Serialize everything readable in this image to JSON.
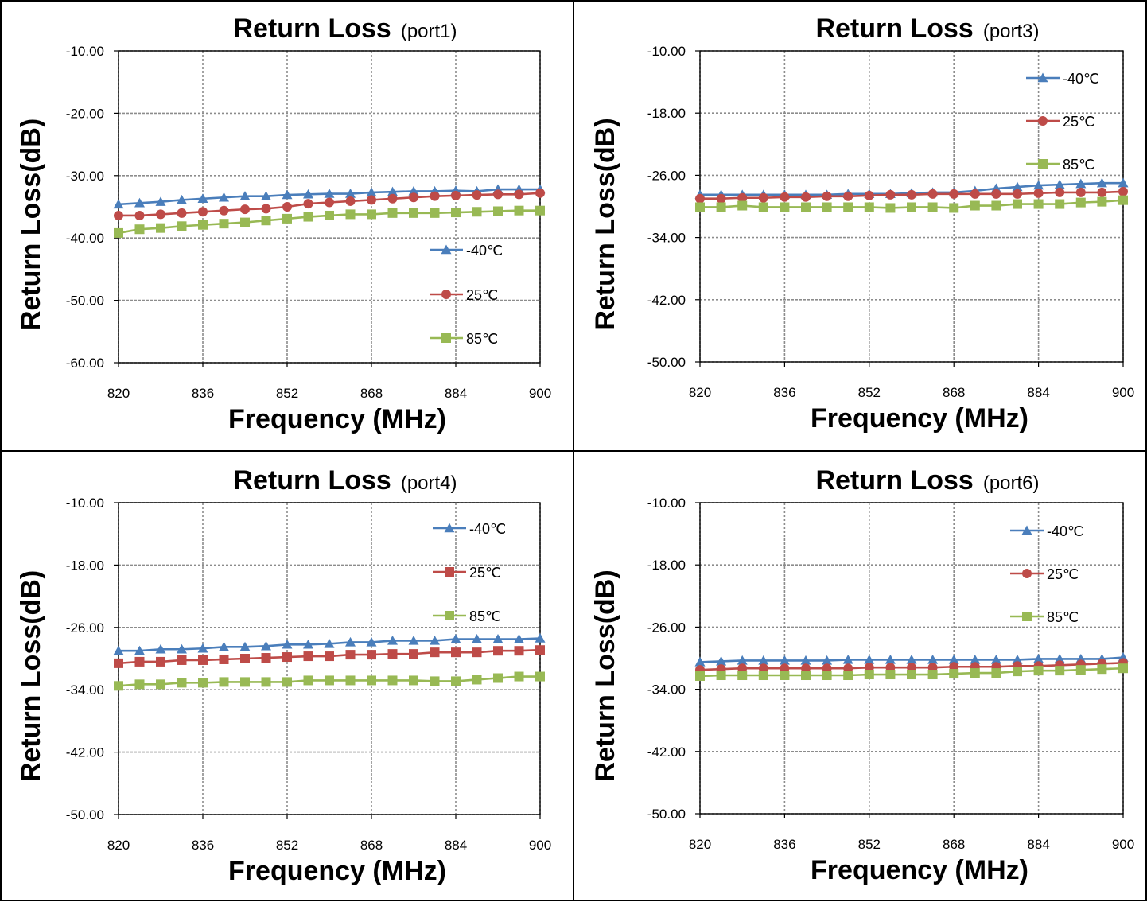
{
  "chart_data": [
    {
      "type": "line",
      "title": "Return Loss",
      "subtitle": "(port1)",
      "xlabel": "Frequency (MHz)",
      "ylabel": "Return Loss(dB)",
      "xlim": [
        820,
        900
      ],
      "ylim": [
        -60,
        -10
      ],
      "yticks": [
        -10,
        -20,
        -30,
        -40,
        -50,
        -60
      ],
      "ytick_labels": [
        "-10.00",
        "-20.00",
        "-30.00",
        "-40.00",
        "-50.00",
        "-60.00"
      ],
      "xticks": [
        820,
        836,
        852,
        868,
        884,
        900
      ],
      "xtick_labels": [
        "820",
        "836",
        "852",
        "868",
        "884",
        "900"
      ],
      "grid": true,
      "legend_position": "right-middle",
      "x": [
        820,
        824,
        828,
        832,
        836,
        840,
        844,
        848,
        852,
        856,
        860,
        864,
        868,
        872,
        876,
        880,
        884,
        888,
        892,
        896,
        900
      ],
      "series": [
        {
          "name": "-40℃",
          "color": "#4a7ebb",
          "marker": "triangle",
          "values": [
            -34.6,
            -34.4,
            -34.2,
            -33.9,
            -33.7,
            -33.5,
            -33.3,
            -33.3,
            -33.1,
            -33.0,
            -32.9,
            -32.9,
            -32.7,
            -32.6,
            -32.5,
            -32.5,
            -32.4,
            -32.5,
            -32.2,
            -32.2,
            -32.2
          ]
        },
        {
          "name": "25℃",
          "color": "#be4b48",
          "marker": "circle",
          "values": [
            -36.4,
            -36.4,
            -36.2,
            -36.0,
            -35.8,
            -35.6,
            -35.4,
            -35.3,
            -35.0,
            -34.5,
            -34.3,
            -34.1,
            -33.9,
            -33.7,
            -33.5,
            -33.3,
            -33.2,
            -33.1,
            -33.0,
            -33.0,
            -32.8
          ]
        },
        {
          "name": "85℃",
          "color": "#98b954",
          "marker": "square",
          "values": [
            -39.2,
            -38.6,
            -38.4,
            -38.1,
            -37.9,
            -37.7,
            -37.5,
            -37.2,
            -36.9,
            -36.6,
            -36.4,
            -36.2,
            -36.2,
            -36.0,
            -36.0,
            -36.0,
            -35.9,
            -35.8,
            -35.7,
            -35.6,
            -35.6
          ]
        }
      ]
    },
    {
      "type": "line",
      "title": "Return Loss",
      "subtitle": "(port3)",
      "xlabel": "Frequency (MHz)",
      "ylabel": "Return Loss(dB)",
      "xlim": [
        820,
        900
      ],
      "ylim": [
        -50,
        -10
      ],
      "yticks": [
        -10,
        -18,
        -26,
        -34,
        -42,
        -50
      ],
      "ytick_labels": [
        "-10.00",
        "-18.00",
        "-26.00",
        "-34.00",
        "-42.00",
        "-50.00"
      ],
      "xticks": [
        820,
        836,
        852,
        868,
        884,
        900
      ],
      "xtick_labels": [
        "820",
        "836",
        "852",
        "868",
        "884",
        "900"
      ],
      "grid": true,
      "legend_position": "top-right",
      "x": [
        820,
        824,
        828,
        832,
        836,
        840,
        844,
        848,
        852,
        856,
        860,
        864,
        868,
        872,
        876,
        880,
        884,
        888,
        892,
        896,
        900
      ],
      "series": [
        {
          "name": "-40℃",
          "color": "#4a7ebb",
          "marker": "triangle",
          "values": [
            -28.5,
            -28.5,
            -28.5,
            -28.5,
            -28.5,
            -28.5,
            -28.5,
            -28.4,
            -28.4,
            -28.4,
            -28.3,
            -28.2,
            -28.2,
            -28.0,
            -27.7,
            -27.5,
            -27.3,
            -27.2,
            -27.1,
            -27.0,
            -27.0
          ]
        },
        {
          "name": "25℃",
          "color": "#be4b48",
          "marker": "circle",
          "values": [
            -29.0,
            -29.0,
            -28.9,
            -28.9,
            -28.8,
            -28.8,
            -28.7,
            -28.7,
            -28.6,
            -28.5,
            -28.5,
            -28.4,
            -28.4,
            -28.4,
            -28.4,
            -28.4,
            -28.3,
            -28.2,
            -28.2,
            -28.2,
            -28.1
          ]
        },
        {
          "name": "85℃",
          "color": "#98b954",
          "marker": "square",
          "values": [
            -30.1,
            -30.1,
            -29.9,
            -30.1,
            -30.1,
            -30.1,
            -30.1,
            -30.1,
            -30.1,
            -30.2,
            -30.1,
            -30.1,
            -30.2,
            -29.9,
            -29.9,
            -29.7,
            -29.7,
            -29.7,
            -29.5,
            -29.4,
            -29.2
          ]
        }
      ]
    },
    {
      "type": "line",
      "title": "Return Loss",
      "subtitle": "(port4)",
      "xlabel": "Frequency (MHz)",
      "ylabel": "Return Loss(dB)",
      "xlim": [
        820,
        900
      ],
      "ylim": [
        -50,
        -10
      ],
      "yticks": [
        -10,
        -18,
        -26,
        -34,
        -42,
        -50
      ],
      "ytick_labels": [
        "-10.00",
        "-18.00",
        "-26.00",
        "-34.00",
        "-42.00",
        "-50.00"
      ],
      "xticks": [
        820,
        836,
        852,
        868,
        884,
        900
      ],
      "xtick_labels": [
        "820",
        "836",
        "852",
        "868",
        "884",
        "900"
      ],
      "grid": true,
      "legend_position": "top-right",
      "x": [
        820,
        824,
        828,
        832,
        836,
        840,
        844,
        848,
        852,
        856,
        860,
        864,
        868,
        872,
        876,
        880,
        884,
        888,
        892,
        896,
        900
      ],
      "series": [
        {
          "name": "-40℃",
          "color": "#4a7ebb",
          "marker": "triangle",
          "values": [
            -29.0,
            -29.0,
            -28.8,
            -28.8,
            -28.7,
            -28.5,
            -28.5,
            -28.4,
            -28.2,
            -28.2,
            -28.1,
            -27.9,
            -27.9,
            -27.7,
            -27.7,
            -27.7,
            -27.5,
            -27.5,
            -27.5,
            -27.5,
            -27.4
          ]
        },
        {
          "name": "25℃",
          "color": "#be4b48",
          "marker": "square",
          "values": [
            -30.6,
            -30.4,
            -30.4,
            -30.2,
            -30.2,
            -30.1,
            -30.0,
            -29.9,
            -29.8,
            -29.7,
            -29.7,
            -29.5,
            -29.5,
            -29.4,
            -29.4,
            -29.2,
            -29.2,
            -29.2,
            -29.0,
            -29.0,
            -28.9
          ]
        },
        {
          "name": "85℃",
          "color": "#98b954",
          "marker": "square",
          "values": [
            -33.5,
            -33.3,
            -33.3,
            -33.1,
            -33.1,
            -33.0,
            -33.0,
            -33.0,
            -33.0,
            -32.8,
            -32.8,
            -32.8,
            -32.8,
            -32.8,
            -32.8,
            -32.9,
            -32.9,
            -32.7,
            -32.5,
            -32.3,
            -32.3
          ]
        }
      ]
    },
    {
      "type": "line",
      "title": "Return Loss",
      "subtitle": "(port6)",
      "xlabel": "Frequency (MHz)",
      "ylabel": "Return Loss(dB)",
      "xlim": [
        820,
        900
      ],
      "ylim": [
        -50,
        -10
      ],
      "yticks": [
        -10,
        -18,
        -26,
        -34,
        -42,
        -50
      ],
      "ytick_labels": [
        "-10.00",
        "-18.00",
        "-26.00",
        "-34.00",
        "-42.00",
        "-50.00"
      ],
      "xticks": [
        820,
        836,
        852,
        868,
        884,
        900
      ],
      "xtick_labels": [
        "820",
        "836",
        "852",
        "868",
        "884",
        "900"
      ],
      "grid": true,
      "legend_position": "top-right",
      "x": [
        820,
        824,
        828,
        832,
        836,
        840,
        844,
        848,
        852,
        856,
        860,
        864,
        868,
        872,
        876,
        880,
        884,
        888,
        892,
        896,
        900
      ],
      "series": [
        {
          "name": "-40℃",
          "color": "#4a7ebb",
          "marker": "triangle",
          "values": [
            -30.5,
            -30.4,
            -30.3,
            -30.3,
            -30.3,
            -30.3,
            -30.3,
            -30.2,
            -30.2,
            -30.2,
            -30.2,
            -30.2,
            -30.2,
            -30.2,
            -30.2,
            -30.2,
            -30.1,
            -30.1,
            -30.1,
            -30.1,
            -29.9
          ]
        },
        {
          "name": "25℃",
          "color": "#be4b48",
          "marker": "circle",
          "values": [
            -31.5,
            -31.4,
            -31.3,
            -31.3,
            -31.3,
            -31.3,
            -31.3,
            -31.3,
            -31.2,
            -31.2,
            -31.2,
            -31.2,
            -31.1,
            -31.1,
            -31.1,
            -31.0,
            -31.0,
            -30.9,
            -30.8,
            -30.7,
            -30.6
          ]
        },
        {
          "name": "85℃",
          "color": "#98b954",
          "marker": "square",
          "values": [
            -32.3,
            -32.2,
            -32.2,
            -32.2,
            -32.2,
            -32.2,
            -32.2,
            -32.2,
            -32.1,
            -32.1,
            -32.1,
            -32.1,
            -32.0,
            -31.9,
            -31.9,
            -31.7,
            -31.6,
            -31.6,
            -31.5,
            -31.4,
            -31.3
          ]
        }
      ]
    }
  ]
}
